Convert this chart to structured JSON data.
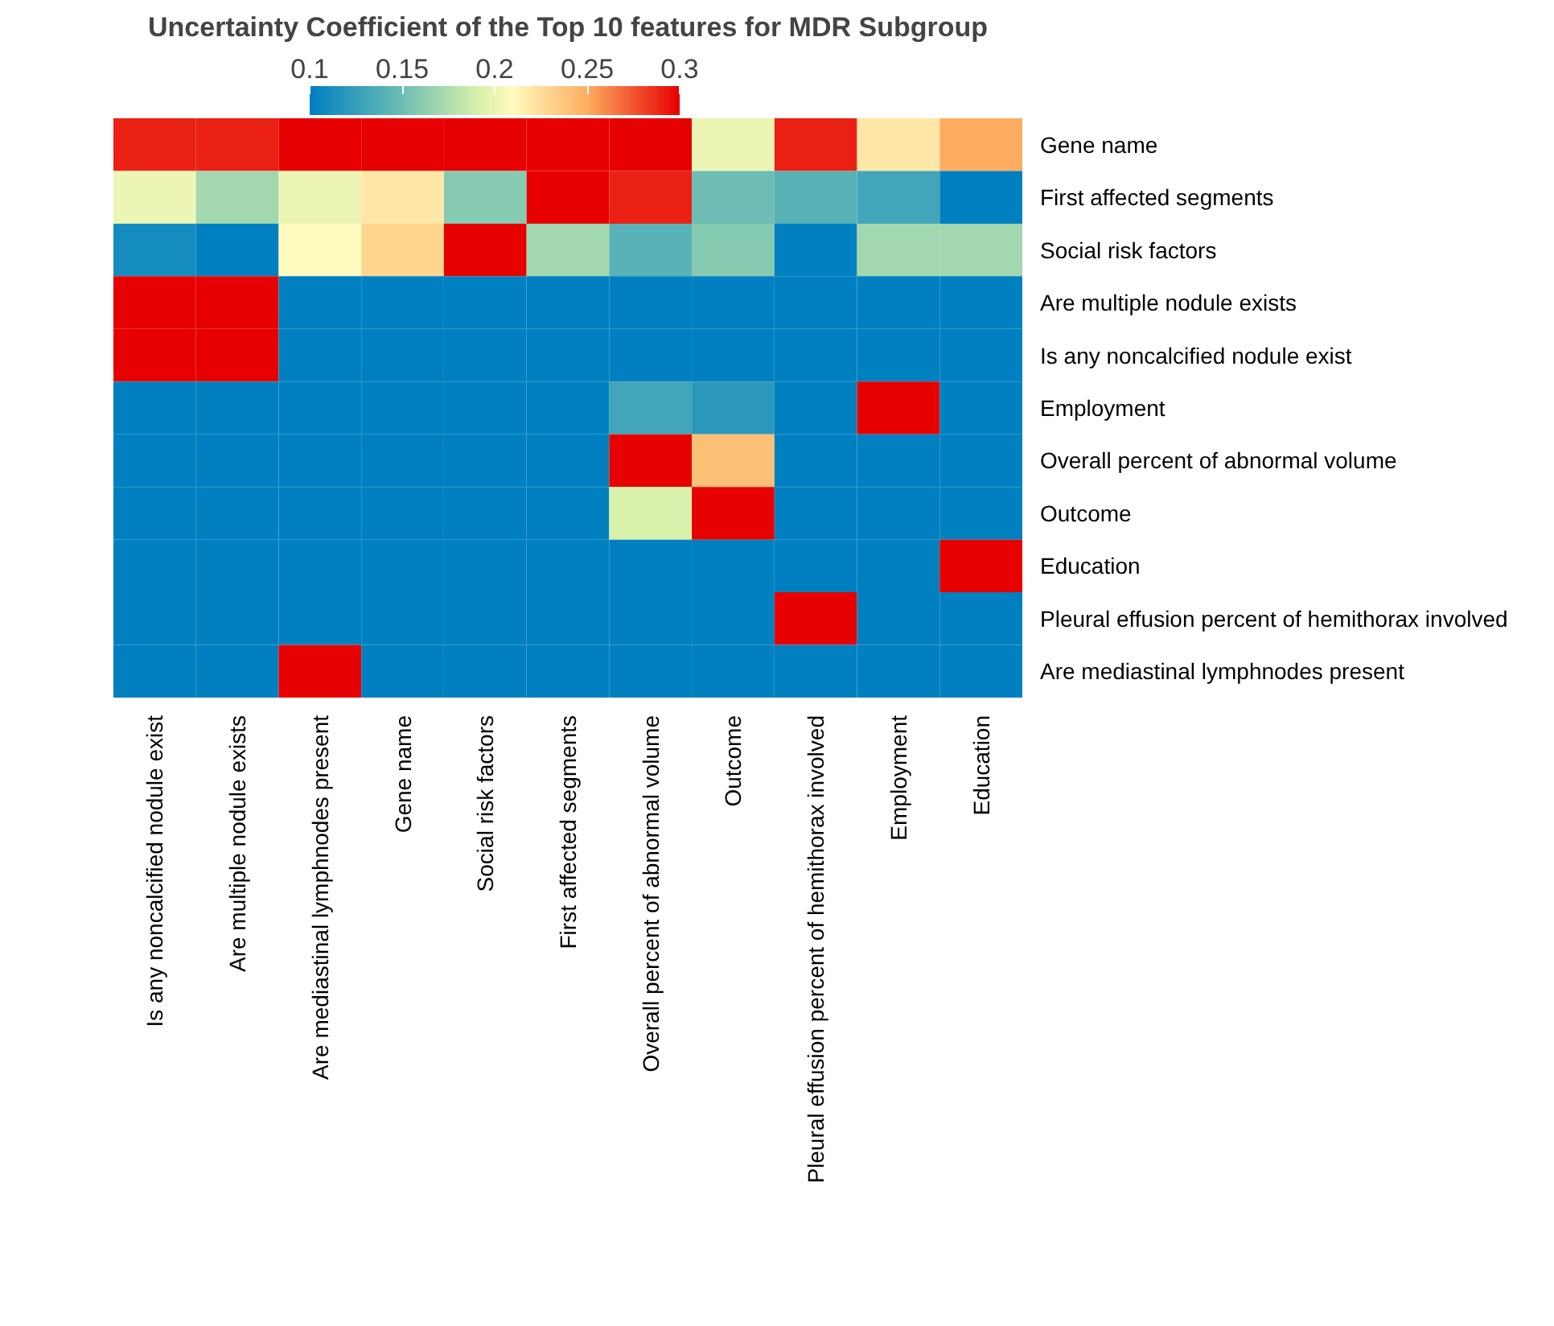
{
  "chart_data": {
    "type": "heatmap",
    "title": "Uncertainty Coefficient of the Top 10 features for MDR Subgroup",
    "categories": [
      "Is any noncalcified nodule exist",
      "Are multiple nodule exists",
      "Are mediastinal lymphnodes present",
      "Gene name",
      "Social risk factors",
      "First affected segments",
      "Overall percent of abnormal volume",
      "Outcome",
      "Pleural effusion percent of hemithorax involved",
      "Employment",
      "Education"
    ],
    "y_categories": [
      "Gene name",
      "First affected segments",
      "Social risk factors",
      "Are multiple nodule exists",
      "Is any noncalcified nodule exist",
      "Employment",
      "Overall percent of abnormal volume",
      "Outcome",
      "Education",
      "Pleural effusion percent of hemithorax involved",
      "Are mediastinal lymphnodes present"
    ],
    "cells": [
      [
        0.29,
        0.29,
        0.3,
        0.3,
        0.3,
        0.3,
        0.3,
        0.2,
        0.29,
        0.22,
        0.25
      ],
      [
        0.2,
        0.17,
        0.2,
        0.22,
        0.16,
        0.3,
        0.29,
        0.15,
        0.14,
        0.13,
        0.1
      ],
      [
        0.11,
        0.1,
        0.21,
        0.23,
        0.3,
        0.17,
        0.14,
        0.16,
        0.1,
        0.17,
        0.17
      ],
      [
        0.3,
        0.3,
        0.1,
        0.1,
        0.1,
        0.1,
        0.1,
        0.1,
        0.1,
        0.1,
        0.1
      ],
      [
        0.3,
        0.3,
        0.1,
        0.1,
        0.1,
        0.1,
        0.1,
        0.1,
        0.1,
        0.1,
        0.1
      ],
      [
        0.1,
        0.1,
        0.1,
        0.1,
        0.1,
        0.1,
        0.13,
        0.12,
        0.1,
        0.3,
        0.1
      ],
      [
        0.1,
        0.1,
        0.1,
        0.1,
        0.1,
        0.1,
        0.3,
        0.24,
        0.1,
        0.1,
        0.1
      ],
      [
        0.1,
        0.1,
        0.1,
        0.1,
        0.1,
        0.1,
        0.19,
        0.3,
        0.1,
        0.1,
        0.1
      ],
      [
        0.1,
        0.1,
        0.1,
        0.1,
        0.1,
        0.1,
        0.1,
        0.1,
        0.1,
        0.1,
        0.3
      ],
      [
        0.1,
        0.1,
        0.1,
        0.1,
        0.1,
        0.1,
        0.1,
        0.1,
        0.3,
        0.1,
        0.1
      ],
      [
        0.1,
        0.1,
        0.3,
        0.1,
        0.1,
        0.1,
        0.1,
        0.1,
        0.1,
        0.1,
        0.1
      ]
    ],
    "clim": [
      0.1,
      0.3
    ],
    "cticks": [
      0.1,
      0.15,
      0.2,
      0.25,
      0.3
    ]
  }
}
